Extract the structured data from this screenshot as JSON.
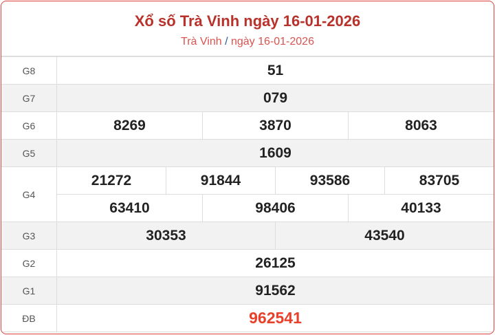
{
  "header": {
    "title": "Xổ số Trà Vinh ngày 16-01-2026",
    "breadcrumb_province": "Trà Vinh",
    "breadcrumb_separator": "/",
    "breadcrumb_date": "ngày 16-01-2026"
  },
  "prizes": [
    {
      "label": "G8",
      "numbers": [
        "51"
      ]
    },
    {
      "label": "G7",
      "numbers": [
        "079"
      ]
    },
    {
      "label": "G6",
      "numbers": [
        "8269",
        "3870",
        "8063"
      ]
    },
    {
      "label": "G5",
      "numbers": [
        "1609"
      ]
    },
    {
      "label": "G4",
      "numbers": [
        "21272",
        "91844",
        "93586",
        "83705",
        "63410",
        "98406",
        "40133"
      ]
    },
    {
      "label": "G3",
      "numbers": [
        "30353",
        "43540"
      ]
    },
    {
      "label": "G2",
      "numbers": [
        "26125"
      ]
    },
    {
      "label": "G1",
      "numbers": [
        "91562"
      ]
    },
    {
      "label": "ĐB",
      "numbers": [
        "962541"
      ]
    }
  ],
  "colors": {
    "title": "#b8312b",
    "special_prize": "#e8402a",
    "border": "#e0403a"
  }
}
